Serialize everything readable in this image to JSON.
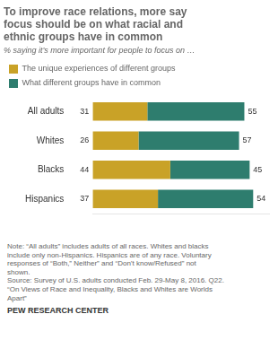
{
  "chart_data": {
    "type": "bar",
    "orientation": "horizontal",
    "stacked": true,
    "title": "To improve race relations, more say\nfocus should be on what racial and\nethnic groups have in common",
    "subtitle": "% saying it’s more important for people to focus on …",
    "categories": [
      "All adults",
      "Whites",
      "Blacks",
      "Hispanics"
    ],
    "series": [
      {
        "name": "The unique experiences of different groups",
        "color": "#C9A227",
        "values": [
          31,
          26,
          44,
          37
        ]
      },
      {
        "name": "What different groups have in common",
        "color": "#2E7D6E",
        "values": [
          55,
          57,
          45,
          54
        ]
      }
    ],
    "xlim": [
      0,
      100
    ],
    "grid": false,
    "legend": "top",
    "data_labels": true,
    "tick_labels": "y",
    "annotations": [
      "Note: “All adults” includes adults of all races. Whites and blacks\ninclude only non-Hispanics. Hispanics are of any race. Voluntary\nresponses of “Both,” Neither” and “Don’t know/Refused” not\nshown.\nSource: Survey of U.S. adults conducted Feb. 29-May 8, 2016. Q22.\n“On Views of Race and Inequality, Blacks and Whites are Worlds\nApart”",
      "PEW RESEARCH CENTER"
    ]
  }
}
